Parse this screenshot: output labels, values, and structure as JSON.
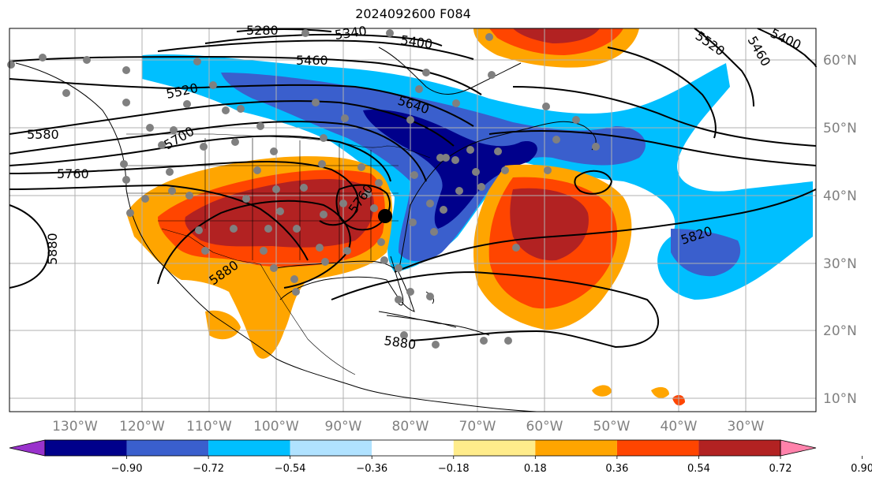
{
  "title": "2024092600 F084",
  "longitude_labels": [
    "130°W",
    "120°W",
    "110°W",
    "100°W",
    "90°W",
    "80°W",
    "70°W",
    "60°W",
    "50°W",
    "40°W",
    "30°W"
  ],
  "latitude_labels": [
    "60°N",
    "50°N",
    "40°N",
    "30°N",
    "20°N",
    "10°N"
  ],
  "contour_labels": [
    "5280",
    "5340",
    "5400",
    "5460",
    "5520",
    "5580",
    "5640",
    "5700",
    "5760",
    "5820",
    "5880",
    "5460",
    "5400",
    "5520",
    "5880",
    "5880",
    "5760"
  ],
  "colorbar": {
    "ticks": [
      "−0.90",
      "−0.72",
      "−0.54",
      "−0.36",
      "−0.18",
      "0.18",
      "0.36",
      "0.54",
      "0.72",
      "0.90"
    ],
    "colors": [
      "#9932cc",
      "#00008b",
      "#3a5fcd",
      "#00bfff",
      "#b0e2ff",
      "#ffffff",
      "#ffec8b",
      "#ffa500",
      "#ff4500",
      "#b22222",
      "#ff82ab"
    ]
  },
  "colors": {
    "deep_blue": "#00008b",
    "royal_blue": "#3a5fcd",
    "sky_blue": "#00bfff",
    "orange": "#ffa500",
    "orange_red": "#ff4500",
    "firebrick": "#b22222",
    "station_dot": "#808080"
  }
}
